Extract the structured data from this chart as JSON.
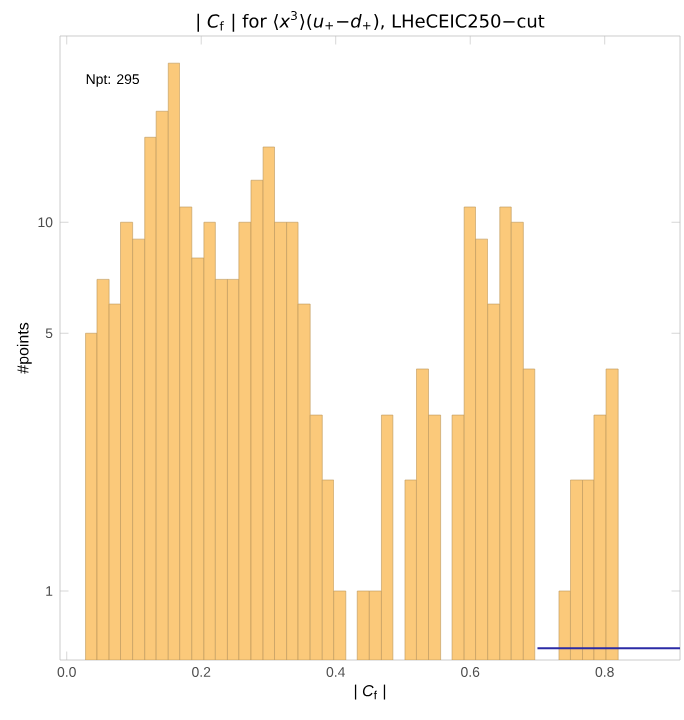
{
  "chart_data": {
    "type": "histogram",
    "title": "| *C*$_{f}$ | for ⟨*x*$^{3}$⟩(*u*$_{+}$−*d*$_{+}$), LHeCEIC250−cut",
    "xlabel": "| *C*$_{f}$ |",
    "ylabel": "#points",
    "annotations": [
      "Npt: 295"
    ],
    "log": "y",
    "grid": false,
    "marker": "none",
    "xlim": [
      -0.01,
      0.912
    ],
    "ylim": [
      0.65,
      32
    ],
    "xticks": [
      {
        "value": 0,
        "label": "0.0"
      },
      {
        "value": 0.2,
        "label": "0.2"
      },
      {
        "value": 0.4,
        "label": "0.4"
      },
      {
        "value": 0.6,
        "label": "0.6"
      },
      {
        "value": 0.8,
        "label": "0.8"
      }
    ],
    "yticks": [
      1,
      5,
      10
    ],
    "series": [
      {
        "color": "#fbc97a",
        "bins": [
          0.028,
          0.045,
          0.063,
          0.08,
          0.098,
          0.116,
          0.133,
          0.151,
          0.168,
          0.186,
          0.204,
          0.221,
          0.239,
          0.256,
          0.274,
          0.292,
          0.309,
          0.327,
          0.344,
          0.362,
          0.38,
          0.397,
          0.415,
          0.432,
          0.45,
          0.468,
          0.485,
          0.503,
          0.52,
          0.538,
          0.556,
          0.573,
          0.591,
          0.608,
          0.626,
          0.644,
          0.661,
          0.679,
          0.696,
          0.732,
          0.749,
          0.767,
          0.784,
          0.802,
          0.82
        ],
        "values": [
          5,
          7,
          6,
          10,
          9,
          17,
          20,
          27,
          11,
          8,
          10,
          7,
          7,
          10,
          13,
          16,
          10,
          10,
          6,
          3,
          2,
          1,
          null,
          1,
          1,
          3,
          null,
          2,
          4,
          3,
          null,
          3,
          11,
          9,
          6,
          11,
          10,
          4,
          null,
          1,
          2,
          2,
          3,
          4
        ]
      },
      {
        "type": "line",
        "color": "#2b2ba6",
        "line_style": "solid",
        "x": [
          0.7,
          0.912
        ],
        "values": [
          0.7,
          0.7
        ]
      }
    ]
  }
}
